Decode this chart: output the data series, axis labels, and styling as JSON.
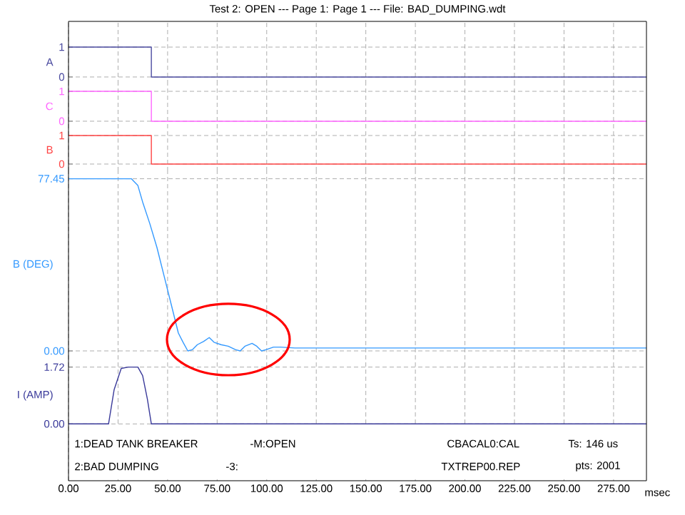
{
  "chart_data": [
    {
      "type": "step",
      "title": "Test 2: OPEN --- Page 1:      Page 1 --- File: BAD_DUMPING.wdt",
      "ylabel": "A",
      "color": "#4b4ba0",
      "x": [
        0,
        41.8,
        291.6
      ],
      "values": [
        1,
        0,
        0
      ],
      "xlim": [
        0,
        291.6
      ],
      "ylim": [
        -0.24,
        1.86
      ],
      "yticks": [
        0,
        1
      ],
      "xticks": [
        0,
        25,
        50,
        75,
        100,
        125,
        150,
        175,
        200,
        225,
        250,
        275
      ],
      "grid": true,
      "tick_labels": "y"
    },
    {
      "type": "step",
      "ylabel": "C",
      "color": "#ff66ff",
      "x": [
        0,
        41.8,
        291.6
      ],
      "values": [
        1,
        0,
        0
      ],
      "xlim": [
        0,
        291.6
      ],
      "ylim": [
        -0.24,
        1.24
      ],
      "yticks": [
        0,
        1
      ],
      "xticks": [
        0,
        25,
        50,
        75,
        100,
        125,
        150,
        175,
        200,
        225,
        250,
        275
      ],
      "grid": true,
      "tick_labels": "y"
    },
    {
      "type": "step",
      "ylabel": "B",
      "color": "#ff4444",
      "x": [
        0,
        41.8,
        291.6
      ],
      "values": [
        1,
        0,
        0
      ],
      "xlim": [
        0,
        291.6
      ],
      "ylim": [
        -0.25,
        1.25
      ],
      "yticks": [
        0,
        1
      ],
      "xticks": [
        0,
        25,
        50,
        75,
        100,
        125,
        150,
        175,
        200,
        225,
        250,
        275
      ],
      "grid": true,
      "tick_labels": "y"
    },
    {
      "type": "line",
      "ylabel": "B (DEG)",
      "color": "#3399ff",
      "x": [
        0,
        31.7,
        35.0,
        37.4,
        41.0,
        44.6,
        48.2,
        51.8,
        55.4,
        57.8,
        60.2,
        62.6,
        65.0,
        68.2,
        71.0,
        73.4,
        77.0,
        80.6,
        84.2,
        86.6,
        89.0,
        92.6,
        95.0,
        97.4,
        99.8,
        103.4,
        107.0,
        114.2,
        133.4,
        291.6
      ],
      "values": [
        77.45,
        77.45,
        74.4,
        67.0,
        57.3,
        46.6,
        33.8,
        21.0,
        8.1,
        3.9,
        0.0,
        0.6,
        2.8,
        4.3,
        6.0,
        3.9,
        2.8,
        2.1,
        0.6,
        0.0,
        2.1,
        3.4,
        2.1,
        0.0,
        0.6,
        1.7,
        1.7,
        1.3,
        1.3,
        1.3
      ],
      "xlim": [
        0,
        291.6
      ],
      "ylim": [
        -3.85,
        80.85
      ],
      "yticks": [
        {
          "value": 0,
          "label": "0.00"
        },
        {
          "value": 77.45,
          "label": "77.45"
        }
      ],
      "xticks": [
        0,
        25,
        50,
        75,
        100,
        125,
        150,
        175,
        200,
        225,
        250,
        275
      ],
      "grid": true,
      "tick_labels": "y"
    },
    {
      "type": "line",
      "ylabel": "I (AMP)",
      "xlabel": "msec",
      "color": "#3a3a9a",
      "x": [
        0,
        20.2,
        23.0,
        26.6,
        30.2,
        35.0,
        37.4,
        39.8,
        41.8,
        291.6
      ],
      "values": [
        0,
        0,
        1.03,
        1.68,
        1.72,
        1.72,
        1.46,
        0.75,
        0,
        0
      ],
      "xlim": [
        0,
        291.6
      ],
      "ylim": [
        -1.72,
        1.95
      ],
      "yticks": [
        {
          "value": 0,
          "label": "0.00"
        },
        {
          "value": 1.72,
          "label": "1.72"
        }
      ],
      "xticks": [
        {
          "value": 0,
          "label": "0.00"
        },
        {
          "value": 25,
          "label": "25.00"
        },
        {
          "value": 50,
          "label": "50.00"
        },
        {
          "value": 75,
          "label": "75.00"
        },
        {
          "value": 100,
          "label": "100.00"
        },
        {
          "value": 125,
          "label": "125.00"
        },
        {
          "value": 150,
          "label": "150.00"
        },
        {
          "value": 175,
          "label": "175.00"
        },
        {
          "value": 200,
          "label": "200.00"
        },
        {
          "value": 225,
          "label": "225.00"
        },
        {
          "value": 250,
          "label": "250.00"
        },
        {
          "value": 275,
          "label": "275.00"
        }
      ],
      "grid": true,
      "annotations": [
        "1:DEAD TANK BREAKER",
        "-M:OPEN",
        "CBACAL0:CAL",
        "Ts: 146 us",
        "2:BAD DUMPING",
        "-3:",
        "TXTREP00.REP",
        "pts: 2001"
      ]
    }
  ]
}
